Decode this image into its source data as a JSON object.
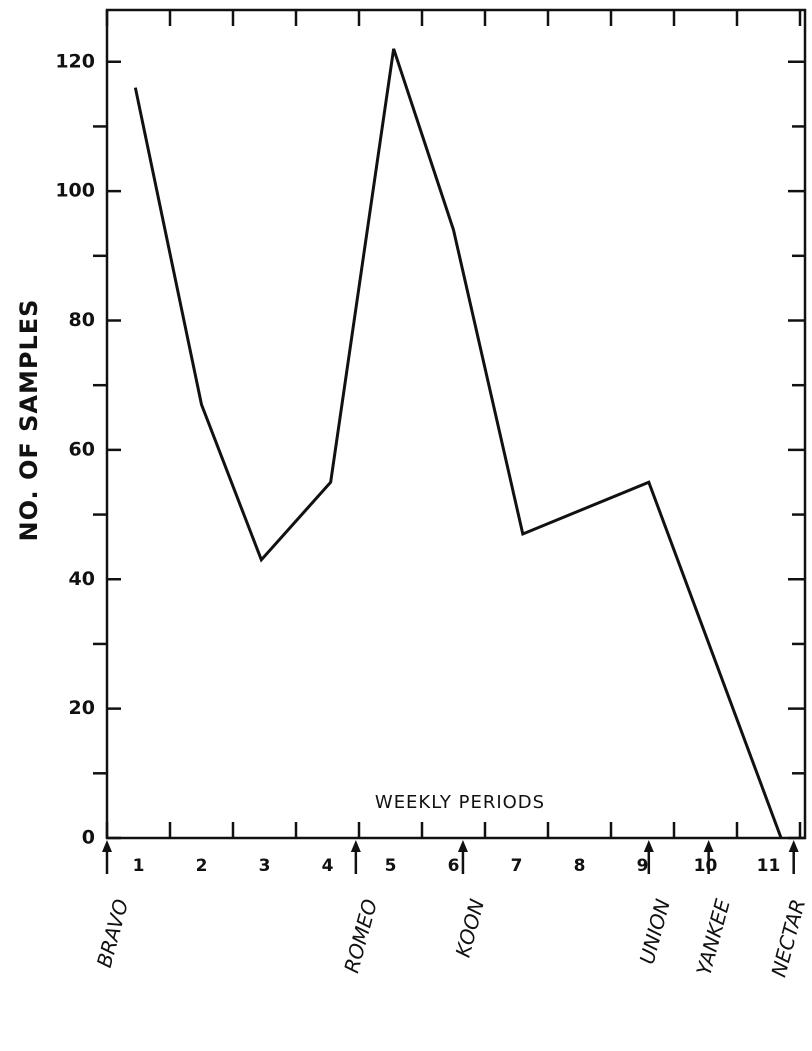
{
  "chart_data": {
    "type": "line",
    "ylabel": "NO. OF SAMPLES",
    "xlabel": "WEEKLY PERIODS",
    "categories": [
      "1",
      "2",
      "3",
      "4",
      "5",
      "6",
      "7",
      "8",
      "9",
      "10",
      "11"
    ],
    "x": [
      0.45,
      1.5,
      2.45,
      3.55,
      4.55,
      5.5,
      6.6,
      8.6,
      10.7
    ],
    "series": [
      {
        "color": "#111111",
        "values": [
          116,
          67,
          43,
          55,
          122,
          94,
          47,
          55,
          0
        ]
      }
    ],
    "xlim": [
      0,
      11
    ],
    "xticks": [
      0,
      1,
      2,
      3,
      4,
      5,
      6,
      7,
      8,
      9,
      10,
      11
    ],
    "ylim": [
      0,
      128
    ],
    "yticks": [
      0,
      20,
      40,
      60,
      80,
      100,
      120
    ],
    "yminor": [
      10,
      30,
      50,
      70,
      90,
      110
    ],
    "events": [
      {
        "label": "BRAVO",
        "x": 0
      },
      {
        "label": "ROMEO",
        "x": 3.95
      },
      {
        "label": "KOON",
        "x": 5.65
      },
      {
        "label": "UNION",
        "x": 8.6
      },
      {
        "label": "YANKEE",
        "x": 9.55
      },
      {
        "label": "NECTAR",
        "x": 10.9
      }
    ]
  }
}
